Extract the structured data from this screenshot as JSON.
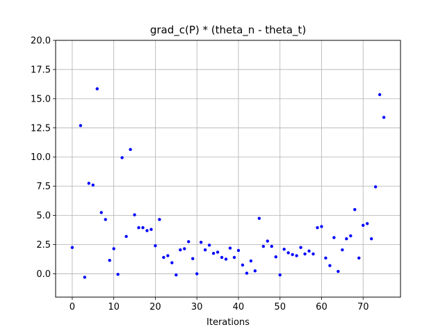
{
  "chart_data": {
    "type": "scatter",
    "title": "grad_c(P) * (theta_n - theta_t)",
    "xlabel": "Iterations",
    "ylabel": "",
    "xlim": [
      -4,
      79
    ],
    "ylim": [
      -2,
      20
    ],
    "xticks": [
      "0",
      "10",
      "20",
      "30",
      "40",
      "50",
      "60",
      "70"
    ],
    "xtick_values": [
      0,
      10,
      20,
      30,
      40,
      50,
      60,
      70
    ],
    "yticks": [
      "0.0",
      "2.5",
      "5.0",
      "7.5",
      "10.0",
      "12.5",
      "15.0",
      "17.5",
      "20.0"
    ],
    "ytick_values": [
      0,
      2.5,
      5,
      7.5,
      10,
      12.5,
      15,
      17.5,
      20
    ],
    "grid": true,
    "marker_color": "#0000ff",
    "series": [
      {
        "x": [
          0,
          2,
          3,
          4,
          5,
          6,
          7,
          8,
          9,
          10,
          11,
          12,
          13,
          14,
          15,
          16,
          17,
          18,
          19,
          20,
          21,
          22,
          23,
          24,
          25,
          26,
          27,
          28,
          29,
          30,
          31,
          32,
          33,
          34,
          35,
          36,
          37,
          38,
          39,
          40,
          41,
          42,
          43,
          44,
          45,
          46,
          47,
          48,
          49,
          50,
          51,
          52,
          53,
          54,
          55,
          56,
          57,
          58,
          59,
          60,
          61,
          62,
          63,
          64,
          65,
          66,
          67,
          68,
          69,
          70,
          71,
          72,
          73,
          74,
          75
        ],
        "y": [
          2.25,
          12.7,
          -0.3,
          7.75,
          7.6,
          15.85,
          5.25,
          4.65,
          1.15,
          2.15,
          -0.05,
          9.95,
          3.2,
          10.65,
          5.05,
          3.95,
          3.95,
          3.7,
          3.8,
          2.4,
          4.65,
          1.4,
          1.55,
          0.95,
          -0.1,
          2.05,
          2.15,
          2.75,
          1.3,
          0.0,
          2.7,
          2.05,
          2.45,
          1.75,
          1.85,
          1.4,
          1.25,
          2.2,
          1.4,
          2.0,
          0.75,
          0.05,
          1.1,
          0.25,
          4.75,
          2.35,
          2.8,
          2.35,
          1.45,
          -0.1,
          2.1,
          1.8,
          1.65,
          1.55,
          2.25,
          1.7,
          1.95,
          1.7,
          3.95,
          4.05,
          1.35,
          0.7,
          3.1,
          0.2,
          2.05,
          3.0,
          3.25,
          5.5,
          1.35,
          4.15,
          4.3,
          3.0,
          7.45,
          15.35,
          13.4
        ]
      }
    ]
  }
}
